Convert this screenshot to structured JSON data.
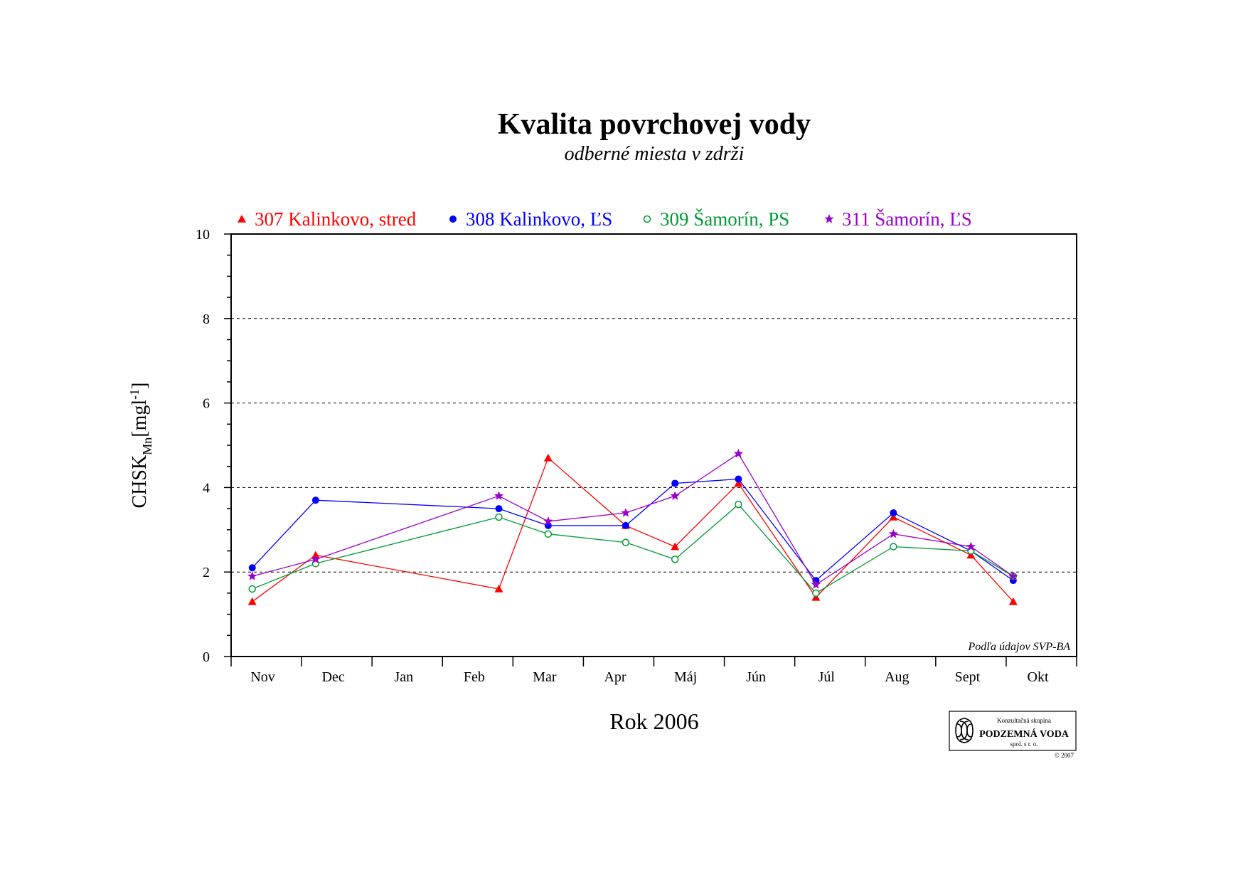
{
  "chart_data": {
    "type": "line",
    "title": "Kvalita povrchovej vody",
    "subtitle": "odberné miesta v zdrži",
    "xlabel": "Rok 2006",
    "ylabel": "CHSK",
    "ylabel_sub": "Mn",
    "ylabel_unit_pre": "[mgl",
    "ylabel_unit_sup": "-1",
    "ylabel_unit_post": "]",
    "ylim": [
      0,
      10
    ],
    "yticks": [
      "0",
      "2",
      "4",
      "6",
      "8",
      "10"
    ],
    "grid": "dashed horizontal at 2, 4, 6, 8",
    "legend_position": "top",
    "categories": [
      "Nov",
      "Dec",
      "Jan",
      "Feb",
      "Mar",
      "Apr",
      "Máj",
      "Jún",
      "Júl",
      "Aug",
      "Sept",
      "Okt"
    ],
    "series": [
      {
        "name": "307 Kalinkovo, stred",
        "color": "#ff0000",
        "marker": "triangle",
        "x": [
          0.3,
          1.2,
          3.8,
          4.5,
          5.6,
          6.3,
          7.2,
          8.3,
          9.4,
          10.5,
          11.1
        ],
        "y": [
          1.3,
          2.4,
          1.6,
          4.7,
          3.1,
          2.6,
          4.1,
          1.4,
          3.3,
          2.4,
          1.3
        ]
      },
      {
        "name": "308 Kalinkovo, ĽS",
        "color": "#0000ff",
        "marker": "filled-circle",
        "x": [
          0.3,
          1.2,
          3.8,
          4.5,
          5.6,
          6.3,
          7.2,
          8.3,
          9.4,
          10.5,
          11.1
        ],
        "y": [
          2.1,
          3.7,
          3.5,
          3.1,
          3.1,
          4.1,
          4.2,
          1.8,
          3.4,
          2.5,
          1.8
        ]
      },
      {
        "name": "309 Šamorín, PS",
        "color": "#009933",
        "marker": "open-circle",
        "x": [
          0.3,
          1.2,
          3.8,
          4.5,
          5.6,
          6.3,
          7.2,
          8.3,
          9.4,
          10.5,
          11.1
        ],
        "y": [
          1.6,
          2.2,
          3.3,
          2.9,
          2.7,
          2.3,
          3.6,
          1.5,
          2.6,
          2.5,
          1.9
        ]
      },
      {
        "name": "311 Šamorín, ĽS",
        "color": "#9900cc",
        "marker": "star",
        "x": [
          0.3,
          1.2,
          3.8,
          4.5,
          5.6,
          6.3,
          7.2,
          8.3,
          9.4,
          10.5,
          11.1
        ],
        "y": [
          1.9,
          2.3,
          3.8,
          3.2,
          3.4,
          3.8,
          4.8,
          1.7,
          2.9,
          2.6,
          1.9
        ]
      }
    ],
    "annotation": "Podľa údajov SVP-BA"
  },
  "logo": {
    "line1": "Konzultačná skupina",
    "line2": "PODZEMNÁ VODA",
    "line3": "spol. s r. o.",
    "copyright": "© 2007"
  }
}
